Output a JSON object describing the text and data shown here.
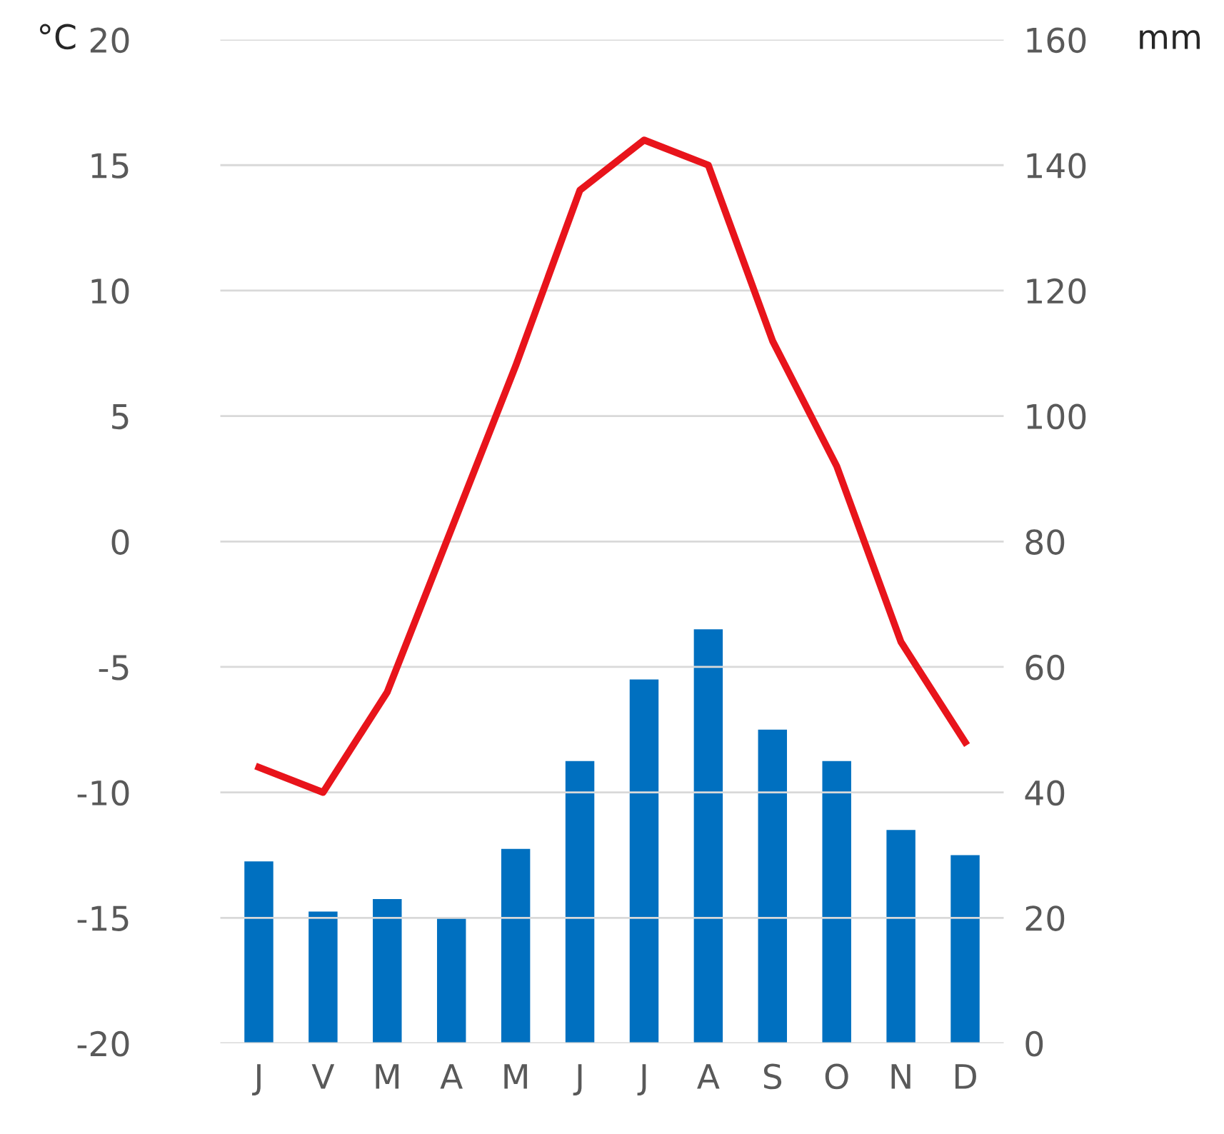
{
  "chart_data": {
    "type": "bar",
    "ylabel": "°C",
    "y2label": "mm",
    "categories": [
      "J",
      "V",
      "M",
      "A",
      "M",
      "J",
      "J",
      "A",
      "S",
      "O",
      "N",
      "D"
    ],
    "series": [
      {
        "axis": "y2",
        "color": "#0070c0",
        "values": [
          29,
          21,
          23,
          20,
          31,
          45,
          58,
          66,
          50,
          45,
          34,
          30
        ]
      },
      {
        "type": "line",
        "axis": "y",
        "color": "#e8141b",
        "values": [
          -9,
          -10,
          -6,
          0.5,
          7,
          14,
          16,
          15,
          8,
          3,
          -4,
          -8
        ]
      }
    ],
    "ylim": [
      -20,
      20
    ],
    "yticks": [
      -20,
      -15,
      -10,
      -5,
      0,
      5,
      10,
      15,
      20
    ],
    "y2lim": [
      0,
      160
    ],
    "y2ticks": [
      0,
      20,
      40,
      60,
      80,
      100,
      120,
      140,
      160
    ],
    "grid": "y",
    "marker": "none",
    "line_style": "solid"
  }
}
